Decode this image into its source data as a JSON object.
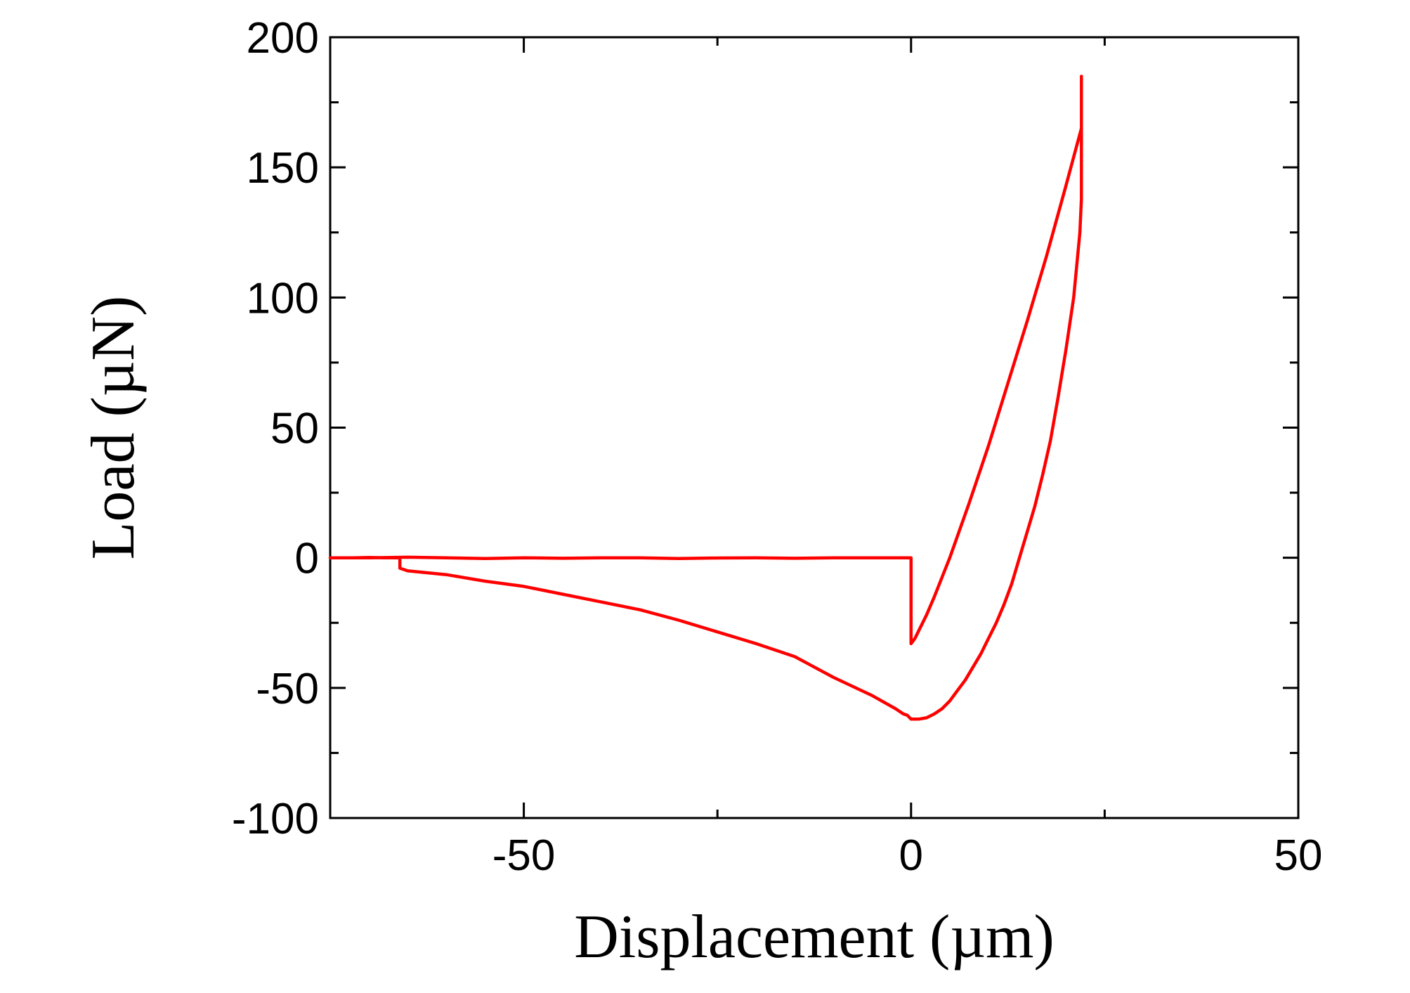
{
  "chart_data": {
    "type": "line",
    "title": "",
    "xlabel": "Displacement (µm)",
    "ylabel": "Load (µN)",
    "xlim": [
      -75,
      50
    ],
    "ylim": [
      -100,
      200
    ],
    "xticks": [
      -50,
      0,
      50
    ],
    "xtick_labels": [
      "-50",
      "0",
      "50"
    ],
    "xminor": [
      -75,
      -25,
      25
    ],
    "yticks": [
      -100,
      -50,
      0,
      50,
      100,
      150,
      200
    ],
    "ytick_labels": [
      "-100",
      "-50",
      "0",
      "50",
      "100",
      "150",
      "200"
    ],
    "yminor": [
      -75,
      -25,
      25,
      75,
      125,
      175
    ],
    "grid": false,
    "legend": "none",
    "line_color": "#ff0000",
    "series": [
      {
        "x": [
          -75,
          -70,
          -65,
          -60,
          -55,
          -50,
          -45,
          -40,
          -35,
          -30,
          -25,
          -20,
          -15,
          -10,
          -5,
          -1,
          0,
          0,
          0,
          0.5,
          1,
          2,
          3,
          5,
          7.5,
          10,
          12.5,
          15,
          17.5,
          20,
          22,
          22,
          22,
          21.8,
          21,
          20,
          19,
          18,
          17,
          16,
          15,
          14,
          13,
          12,
          11,
          10,
          9,
          8,
          7,
          6,
          5,
          4,
          3,
          2,
          1,
          0,
          -0.5,
          -1,
          -2,
          -5,
          -10,
          -15,
          -20,
          -25,
          -30,
          -35,
          -40,
          -45,
          -50,
          -55,
          -60,
          -65,
          -66,
          -66,
          -68,
          -70,
          -72,
          -75
        ],
        "y": [
          0,
          0,
          0.2,
          0,
          -0.3,
          0,
          -0.2,
          0,
          0,
          -0.3,
          -0.1,
          0,
          -0.2,
          0,
          0,
          0,
          0,
          -20,
          -33,
          -31,
          -28,
          -22,
          -15,
          0,
          21,
          43,
          67,
          91,
          116,
          143,
          165,
          185,
          138,
          125,
          100,
          80,
          62,
          45,
          32,
          20,
          10,
          0,
          -10,
          -18,
          -25,
          -31,
          -37,
          -42,
          -47,
          -51,
          -55,
          -58,
          -60,
          -61.5,
          -62,
          -62,
          -60.5,
          -60,
          -58,
          -53,
          -46,
          -38,
          -33,
          -28.5,
          -24,
          -20,
          -17,
          -14,
          -11,
          -9,
          -6.5,
          -5,
          -4,
          0,
          0,
          0.1,
          0,
          0
        ]
      }
    ]
  }
}
